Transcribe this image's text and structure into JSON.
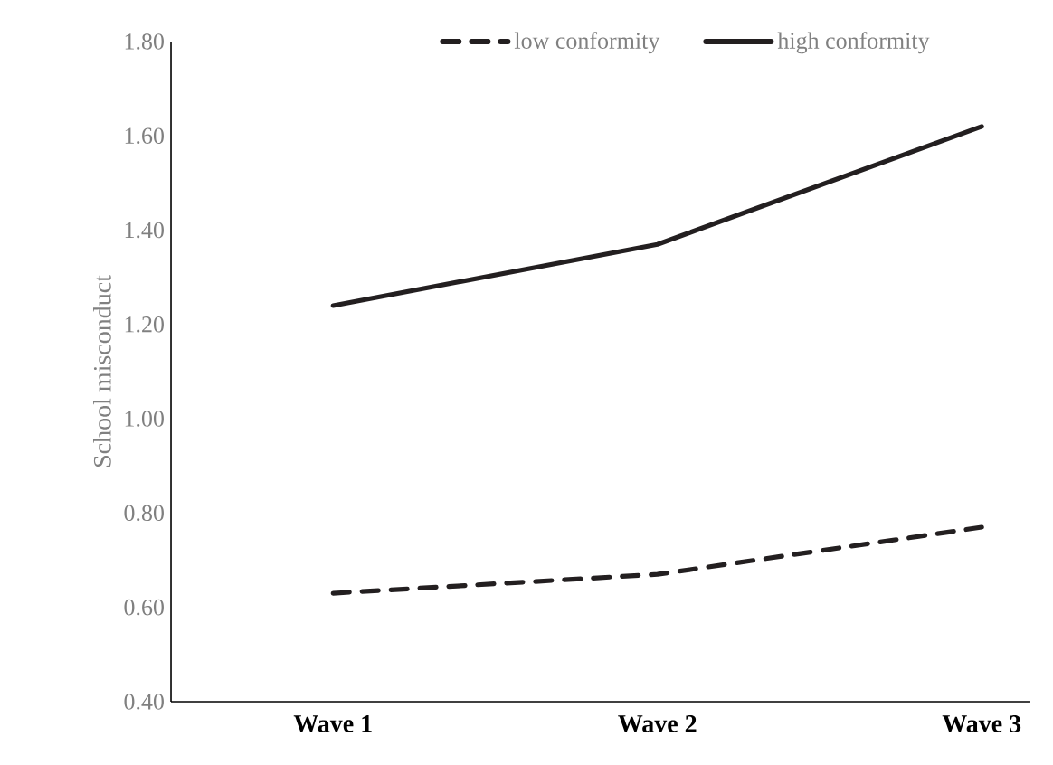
{
  "chart_data": {
    "type": "line",
    "ylabel": "School  misconduct",
    "categories": [
      "Wave 1",
      "Wave 2",
      "Wave 3"
    ],
    "series": [
      {
        "name": "low conformity",
        "color": "#231f20",
        "line_style": "dashed",
        "values": [
          0.63,
          0.67,
          0.77
        ]
      },
      {
        "name": "high conformity",
        "color": "#231f20",
        "line_style": "solid",
        "values": [
          1.24,
          1.37,
          1.62
        ]
      }
    ],
    "ylim": [
      0.4,
      1.8
    ],
    "yticks": [
      {
        "value": 0.4,
        "label": "0.40"
      },
      {
        "value": 0.6,
        "label": "0.60"
      },
      {
        "value": 0.8,
        "label": "0.80"
      },
      {
        "value": 1.0,
        "label": "1.00"
      },
      {
        "value": 1.2,
        "label": "1.20"
      },
      {
        "value": 1.4,
        "label": "1.40"
      },
      {
        "value": 1.6,
        "label": "1.60"
      },
      {
        "value": 1.8,
        "label": "1.80"
      }
    ],
    "grid": false,
    "legend": "top",
    "marker": "none"
  }
}
